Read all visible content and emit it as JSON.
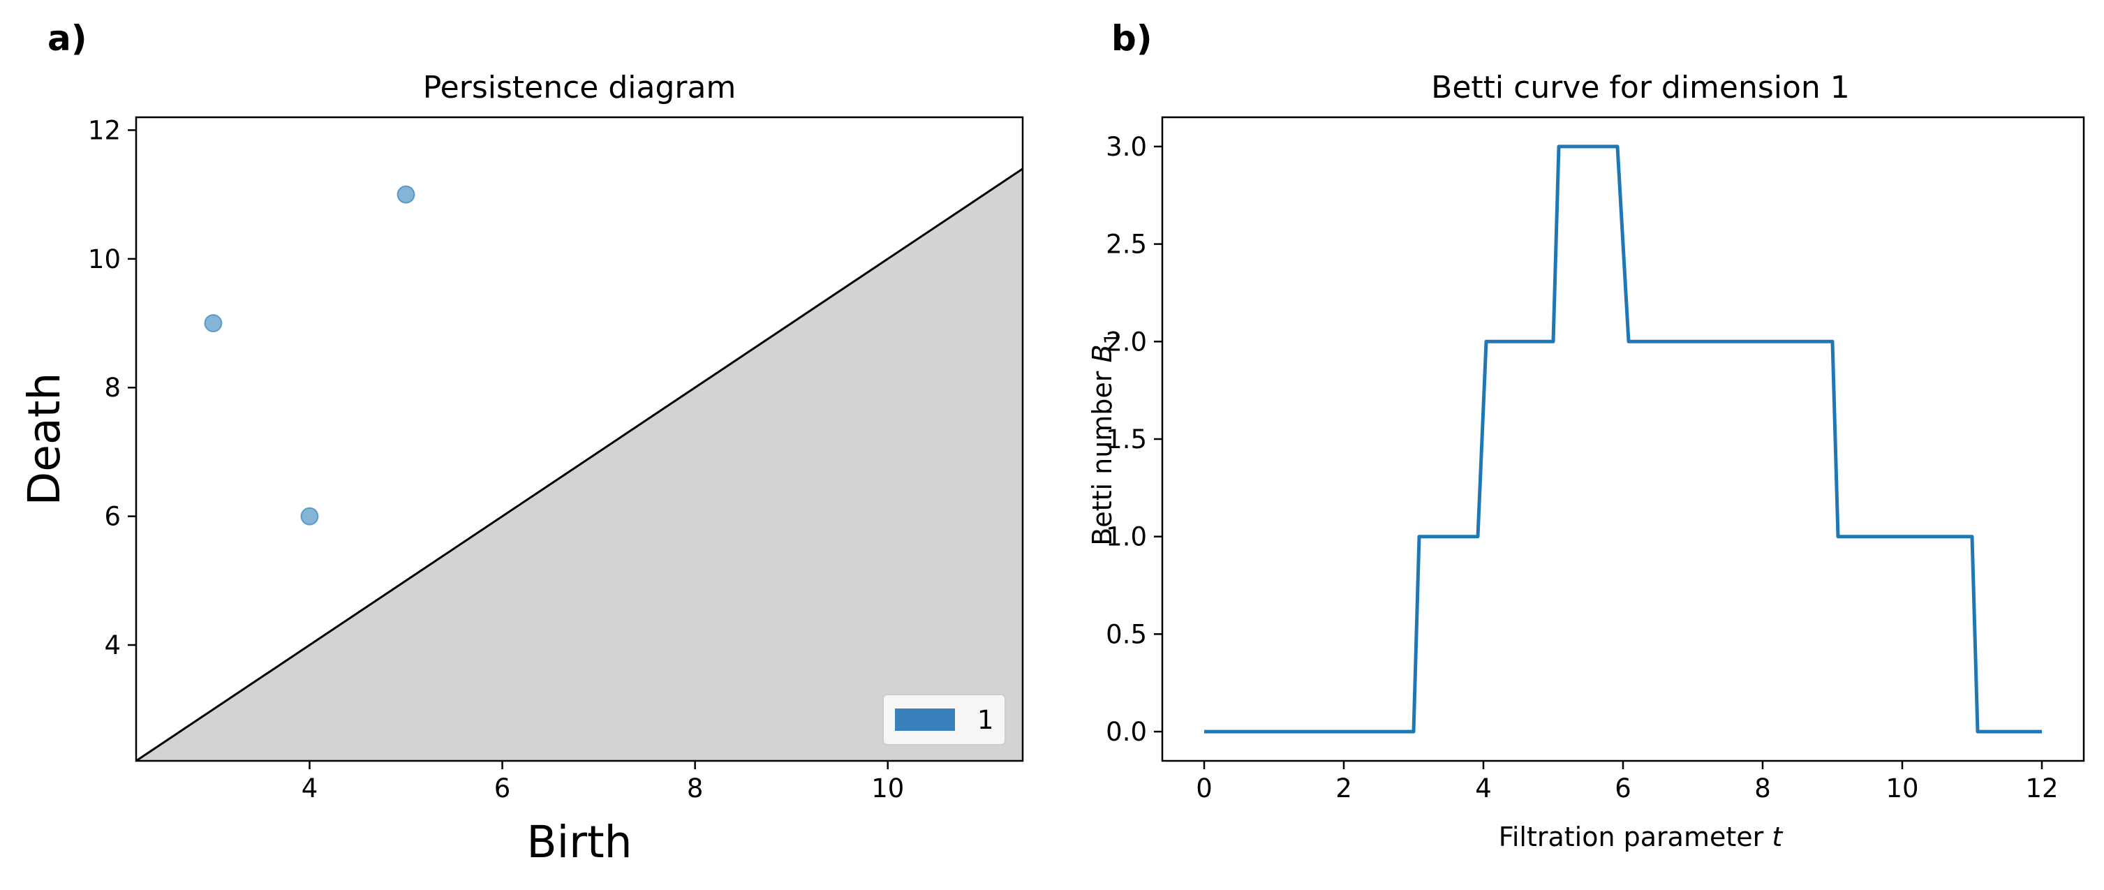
{
  "panels": {
    "a": "a)",
    "b": "b)"
  },
  "chart_data": [
    {
      "type": "scatter",
      "title": "Persistence diagram",
      "xlabel": "Birth",
      "ylabel": "Death",
      "xlim": [
        2.2,
        11.4
      ],
      "ylim": [
        2.2,
        12.2
      ],
      "xticks": [
        "4",
        "6",
        "8",
        "10"
      ],
      "yticks": [
        "4",
        "6",
        "8",
        "10",
        "12"
      ],
      "diagonal": true,
      "shaded_region": "below-diagonal",
      "legend": {
        "placement": "lower-right",
        "entries": [
          "1"
        ]
      },
      "series": [
        {
          "name": "1",
          "x": [
            3,
            4,
            5
          ],
          "y": [
            9,
            6,
            11
          ]
        }
      ],
      "colors": {
        "points": "#1f77b4",
        "shade": "#d3d3d3"
      }
    },
    {
      "type": "line",
      "title": "Betti curve for dimension 1",
      "xlabel": "Filtration parameter t",
      "ylabel": "Betti number B1",
      "xlim": [
        -0.6,
        12.6
      ],
      "ylim": [
        -0.15,
        3.15
      ],
      "xticks": [
        "0",
        "2",
        "4",
        "6",
        "8",
        "10",
        "12"
      ],
      "yticks": [
        "0.0",
        "0.5",
        "1.0",
        "1.5",
        "2.0",
        "2.5",
        "3.0"
      ],
      "series": [
        {
          "x": [
            0,
            3,
            3.08,
            3.92,
            4.04,
            5,
            5.08,
            5.92,
            6.08,
            9,
            9.08,
            11,
            11.08,
            12
          ],
          "y": [
            0,
            0,
            1,
            1,
            2,
            2,
            3,
            3,
            2,
            2,
            1,
            1,
            0,
            0
          ]
        }
      ],
      "colors": {
        "line": "#1f77b4"
      }
    }
  ]
}
